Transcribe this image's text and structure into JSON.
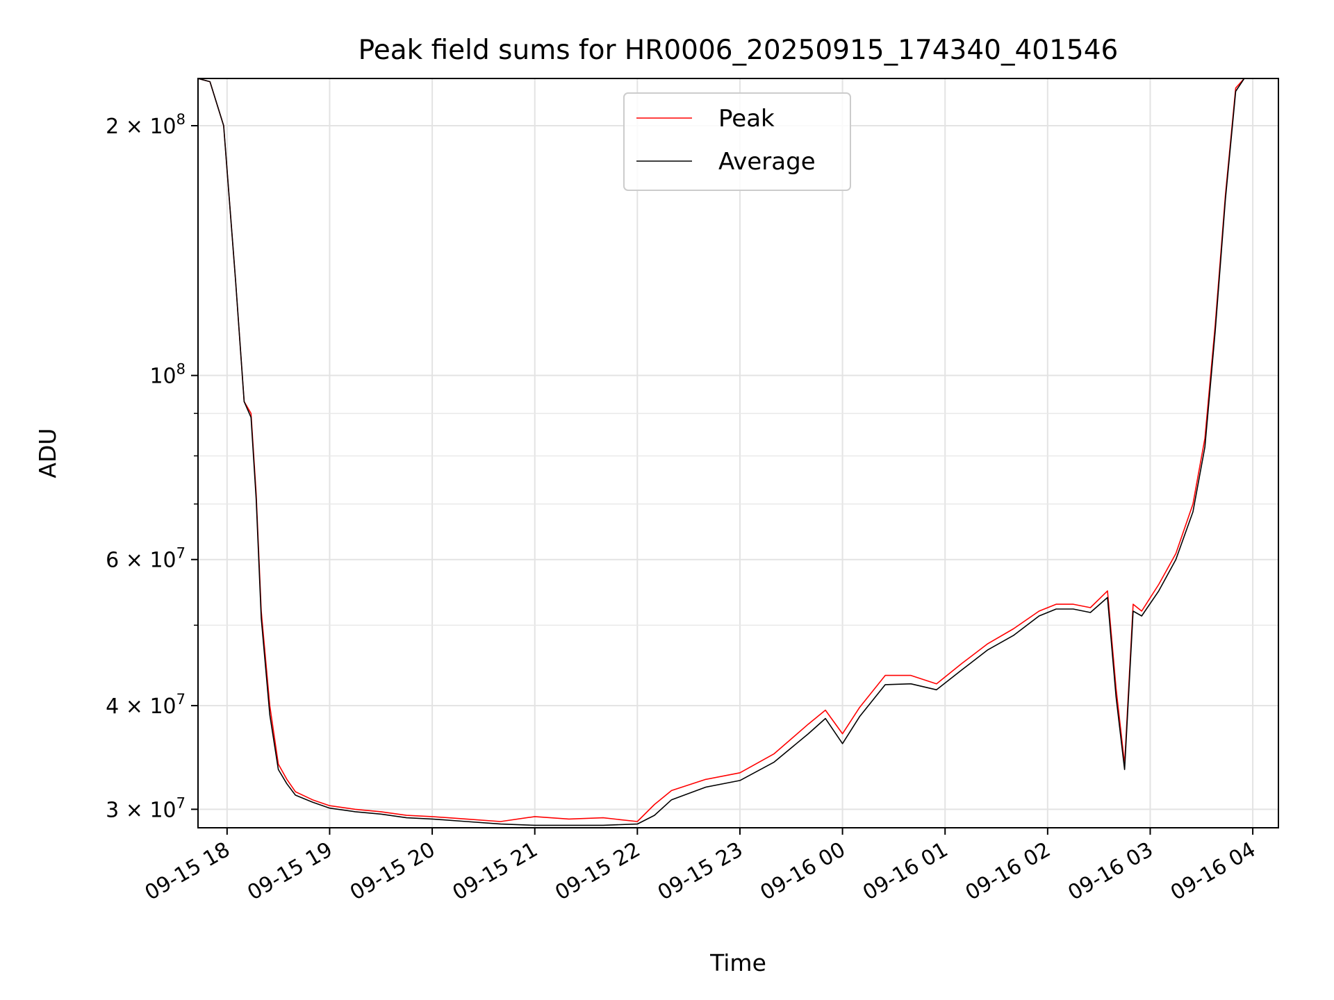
{
  "chart_data": {
    "type": "line",
    "title": "Peak field sums for HR0006_20250915_174340_401546",
    "xlabel": "Time",
    "ylabel": "ADU",
    "yscale": "log",
    "ylim": [
      28500000,
      228000000
    ],
    "xlim": [
      "09-15 17:43",
      "09-16 04:15"
    ],
    "grid": true,
    "legend_position": "upper center",
    "x_ticks": [
      "09-15 18",
      "09-15 19",
      "09-15 20",
      "09-15 21",
      "09-15 22",
      "09-15 23",
      "09-16 00",
      "09-16 01",
      "09-16 02",
      "09-16 03",
      "09-16 04"
    ],
    "y_ticks": [
      {
        "value": 30000000,
        "mantissa": "3",
        "exp": "7"
      },
      {
        "value": 40000000,
        "mantissa": "4",
        "exp": "7"
      },
      {
        "value": 60000000,
        "mantissa": "6",
        "exp": "7"
      },
      {
        "value": 100000000,
        "mantissa": "",
        "exp": "8"
      },
      {
        "value": 200000000,
        "mantissa": "2",
        "exp": "8"
      }
    ],
    "y_minor_ticks": [
      50000000,
      70000000,
      80000000,
      90000000
    ],
    "series": [
      {
        "name": "Peak",
        "color": "#ff0000",
        "x": [
          "09-15 17:43",
          "09-15 17:50",
          "09-15 17:58",
          "09-15 18:05",
          "09-15 18:10",
          "09-15 18:14",
          "09-15 18:17",
          "09-15 18:20",
          "09-15 18:25",
          "09-15 18:30",
          "09-15 18:35",
          "09-15 18:40",
          "09-15 18:50",
          "09-15 19:00",
          "09-15 19:15",
          "09-15 19:30",
          "09-15 19:45",
          "09-15 20:00",
          "09-15 20:20",
          "09-15 20:40",
          "09-15 21:00",
          "09-15 21:20",
          "09-15 21:40",
          "09-15 22:00",
          "09-15 22:10",
          "09-15 22:20",
          "09-15 22:40",
          "09-15 23:00",
          "09-15 23:20",
          "09-15 23:40",
          "09-15 23:50",
          "09-16 00:00",
          "09-16 00:10",
          "09-16 00:25",
          "09-16 00:40",
          "09-16 00:55",
          "09-16 01:10",
          "09-16 01:25",
          "09-16 01:40",
          "09-16 01:55",
          "09-16 02:05",
          "09-16 02:15",
          "09-16 02:25",
          "09-16 02:35",
          "09-16 02:40",
          "09-16 02:45",
          "09-16 02:50",
          "09-16 02:55",
          "09-16 03:05",
          "09-16 03:15",
          "09-16 03:25",
          "09-16 03:32",
          "09-16 03:38",
          "09-16 03:44",
          "09-16 03:50",
          "09-16 03:55",
          "09-16 04:00",
          "09-16 04:15"
        ],
        "y": [
          228000000,
          226000000,
          200000000,
          130000000,
          93000000,
          90000000,
          72000000,
          52000000,
          40000000,
          34000000,
          32600000,
          31500000,
          30800000,
          30300000,
          30000000,
          29800000,
          29500000,
          29400000,
          29200000,
          29000000,
          29400000,
          29200000,
          29300000,
          29000000,
          30400000,
          31600000,
          32600000,
          33200000,
          35000000,
          38000000,
          39500000,
          37000000,
          39800000,
          43500000,
          43500000,
          42500000,
          45000000,
          47500000,
          49500000,
          52000000,
          53000000,
          53000000,
          52500000,
          55000000,
          42000000,
          34000000,
          53000000,
          52000000,
          56000000,
          61000000,
          70000000,
          84000000,
          115000000,
          165000000,
          222000000,
          228000000,
          228000000,
          228000000
        ]
      },
      {
        "name": "Average",
        "color": "#000000",
        "x": [
          "09-15 17:43",
          "09-15 17:50",
          "09-15 17:58",
          "09-15 18:05",
          "09-15 18:10",
          "09-15 18:14",
          "09-15 18:17",
          "09-15 18:20",
          "09-15 18:25",
          "09-15 18:30",
          "09-15 18:35",
          "09-15 18:40",
          "09-15 18:50",
          "09-15 19:00",
          "09-15 19:15",
          "09-15 19:30",
          "09-15 19:45",
          "09-15 20:00",
          "09-15 20:20",
          "09-15 20:40",
          "09-15 21:00",
          "09-15 21:20",
          "09-15 21:40",
          "09-15 22:00",
          "09-15 22:10",
          "09-15 22:20",
          "09-15 22:40",
          "09-15 23:00",
          "09-15 23:20",
          "09-15 23:40",
          "09-15 23:50",
          "09-16 00:00",
          "09-16 00:10",
          "09-16 00:25",
          "09-16 00:40",
          "09-16 00:55",
          "09-16 01:10",
          "09-16 01:25",
          "09-16 01:40",
          "09-16 01:55",
          "09-16 02:05",
          "09-16 02:15",
          "09-16 02:25",
          "09-16 02:35",
          "09-16 02:40",
          "09-16 02:45",
          "09-16 02:50",
          "09-16 02:55",
          "09-16 03:05",
          "09-16 03:15",
          "09-16 03:25",
          "09-16 03:32",
          "09-16 03:38",
          "09-16 03:44",
          "09-16 03:50",
          "09-16 03:55",
          "09-16 04:00",
          "09-16 04:15"
        ],
        "y": [
          228000000,
          226000000,
          200000000,
          130000000,
          93000000,
          89000000,
          71000000,
          51000000,
          39000000,
          33500000,
          32200000,
          31200000,
          30600000,
          30100000,
          29800000,
          29600000,
          29300000,
          29200000,
          29000000,
          28800000,
          28700000,
          28700000,
          28700000,
          28800000,
          29500000,
          30800000,
          31900000,
          32500000,
          34200000,
          37000000,
          38600000,
          36000000,
          38800000,
          42400000,
          42500000,
          41800000,
          44200000,
          46700000,
          48600000,
          51300000,
          52300000,
          52300000,
          51800000,
          54000000,
          41000000,
          33500000,
          52000000,
          51300000,
          55000000,
          60000000,
          68500000,
          82000000,
          113000000,
          163000000,
          220000000,
          228000000,
          228000000,
          228000000
        ]
      }
    ]
  }
}
